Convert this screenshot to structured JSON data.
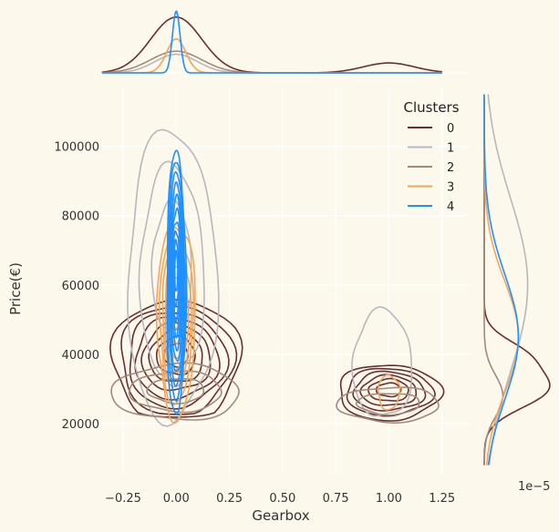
{
  "chart_data": {
    "type": "kde-jointplot",
    "title": "",
    "xlabel": "Gearbox",
    "ylabel": "Price(€)",
    "xlim": [
      -0.4,
      1.38
    ],
    "ylim": [
      5000,
      117000
    ],
    "xticks": [
      -0.25,
      0.0,
      0.25,
      0.5,
      0.75,
      1.0,
      1.25
    ],
    "xtick_labels": [
      "−0.25",
      "0.00",
      "0.25",
      "0.50",
      "0.75",
      "1.00",
      "1.25"
    ],
    "yticks": [
      20000,
      40000,
      60000,
      80000,
      100000
    ],
    "ytick_labels": [
      "20000",
      "40000",
      "60000",
      "80000",
      "100000"
    ],
    "grid": true,
    "marginal_y_offset_label": "1e−5",
    "legend": {
      "title": "Clusters",
      "placement": "top-right",
      "entries": [
        "0",
        "1",
        "2",
        "3",
        "4"
      ]
    },
    "series": [
      {
        "name": "0",
        "color": "#6b2e2e",
        "blobs": [
          {
            "cx": 0.0,
            "cy": 38000,
            "rx": 0.3,
            "ry": 18000,
            "levels": 8,
            "ymin": 23000
          },
          {
            "cx": 1.0,
            "cy": 29000,
            "rx": 0.24,
            "ry": 8000,
            "levels": 6
          }
        ]
      },
      {
        "name": "1",
        "color": "#b7b7bf",
        "blobs": [
          {
            "cx": -0.02,
            "cy": 62000,
            "rx": 0.21,
            "ry": 42000,
            "levels": 3
          },
          {
            "cx": 0.97,
            "cy": 37000,
            "rx": 0.14,
            "ry": 15500,
            "levels": 1
          }
        ]
      },
      {
        "name": "2",
        "color": "#a08b7a",
        "blobs": [
          {
            "cx": 0.0,
            "cy": 29000,
            "rx": 0.3,
            "ry": 8000,
            "levels": 3
          },
          {
            "cx": 1.0,
            "cy": 25500,
            "rx": 0.24,
            "ry": 5000,
            "levels": 2
          }
        ]
      },
      {
        "name": "3",
        "color": "#f2a65a",
        "blobs": [
          {
            "cx": 0.0,
            "cy": 50000,
            "rx": 0.09,
            "ry": 28000,
            "levels": 7
          },
          {
            "cx": 1.0,
            "cy": 29000,
            "rx": 0.05,
            "ry": 5000,
            "levels": 1
          }
        ]
      },
      {
        "name": "4",
        "color": "#1e90ff",
        "blobs": [
          {
            "cx": 0.0,
            "cy": 60000,
            "rx": 0.045,
            "ry": 38000,
            "levels": 10
          }
        ]
      }
    ],
    "marginal_x": [
      {
        "name": "0",
        "components": [
          {
            "mu": 0.0,
            "sigma": 0.12,
            "weight": 0.9
          },
          {
            "mu": 1.0,
            "sigma": 0.12,
            "weight": 0.16
          }
        ]
      },
      {
        "name": "1",
        "components": [
          {
            "mu": 0.0,
            "sigma": 0.1,
            "weight": 0.3
          }
        ]
      },
      {
        "name": "2",
        "components": [
          {
            "mu": 0.0,
            "sigma": 0.12,
            "weight": 0.35
          }
        ]
      },
      {
        "name": "3",
        "components": [
          {
            "mu": 0.0,
            "sigma": 0.045,
            "weight": 0.55
          }
        ]
      },
      {
        "name": "4",
        "components": [
          {
            "mu": 0.0,
            "sigma": 0.018,
            "weight": 1.0
          }
        ]
      }
    ],
    "marginal_y": [
      {
        "name": "0",
        "components": [
          {
            "mu": 30000,
            "sigma": 5500,
            "weight": 1.0
          },
          {
            "mu": 40000,
            "sigma": 4500,
            "weight": 0.55
          }
        ]
      },
      {
        "name": "1",
        "components": [
          {
            "mu": 60000,
            "sigma": 25000,
            "weight": 0.7
          }
        ]
      },
      {
        "name": "2",
        "components": [
          {
            "mu": 28000,
            "sigma": 6000,
            "weight": 0.3
          }
        ]
      },
      {
        "name": "3",
        "components": [
          {
            "mu": 45000,
            "sigma": 16000,
            "weight": 0.55
          }
        ]
      },
      {
        "name": "4",
        "components": [
          {
            "mu": 45000,
            "sigma": 18000,
            "weight": 0.55
          }
        ]
      }
    ]
  }
}
